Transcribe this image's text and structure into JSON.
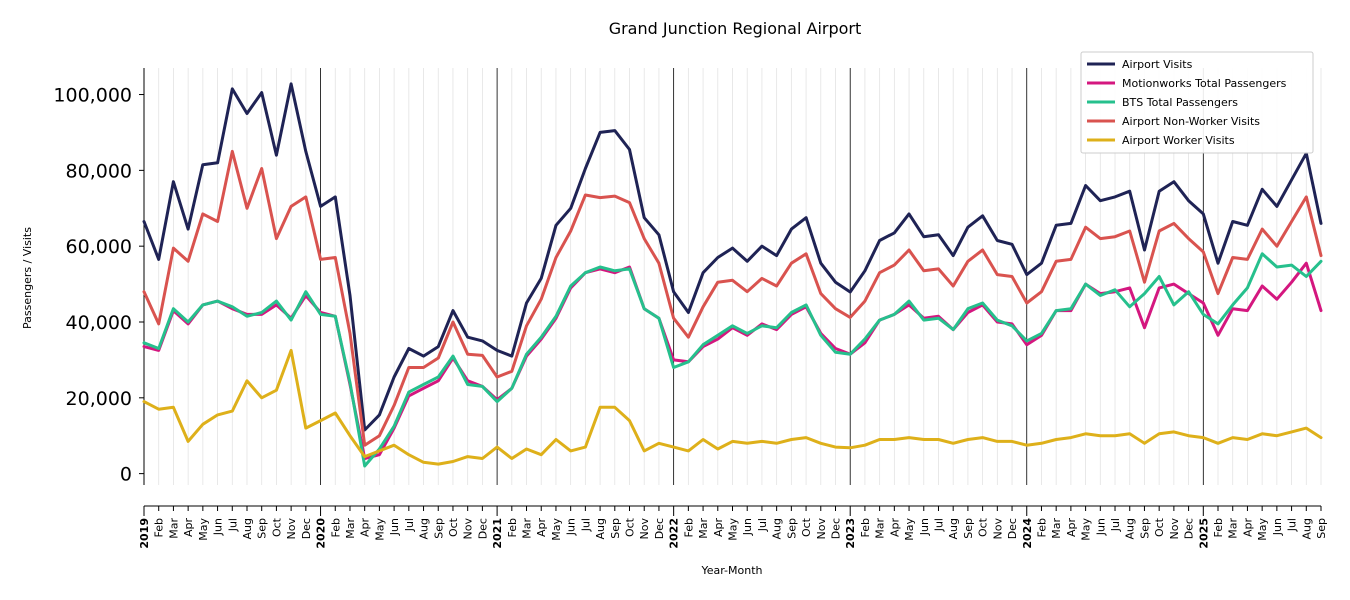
{
  "chart_data": {
    "type": "line",
    "title": "Grand Junction Regional Airport",
    "xlabel": "Year-Month",
    "ylabel": "Passengers / Visits",
    "ylim": [
      -3000,
      107000
    ],
    "yticks": [
      0,
      20000,
      40000,
      60000,
      80000,
      100000
    ],
    "ytick_labels": [
      "0",
      "20,000",
      "40,000",
      "60,000",
      "80,000",
      "100,000"
    ],
    "grid": "vertical minor lines per month, major black lines per year",
    "legend_position": "top-right",
    "x": [
      "2019",
      "Feb",
      "Mar",
      "Apr",
      "May",
      "Jun",
      "Jul",
      "Aug",
      "Sep",
      "Oct",
      "Nov",
      "Dec",
      "2020",
      "Feb",
      "Mar",
      "Apr",
      "May",
      "Jun",
      "Jul",
      "Aug",
      "Sep",
      "Oct",
      "Nov",
      "Dec",
      "2021",
      "Feb",
      "Mar",
      "Apr",
      "May",
      "Jun",
      "Jul",
      "Aug",
      "Sep",
      "Oct",
      "Nov",
      "Dec",
      "2022",
      "Feb",
      "Mar",
      "Apr",
      "May",
      "Jun",
      "Jul",
      "Aug",
      "Sep",
      "Oct",
      "Nov",
      "Dec",
      "2023",
      "Feb",
      "Mar",
      "Apr",
      "May",
      "Jun",
      "Jul",
      "Aug",
      "Sep",
      "Oct",
      "Nov",
      "Dec",
      "2024",
      "Feb",
      "Mar",
      "Apr",
      "May",
      "Jun",
      "Jul",
      "Aug",
      "Sep",
      "Oct",
      "Nov",
      "Dec",
      "2025",
      "Feb",
      "Mar",
      "Apr",
      "May",
      "Jun",
      "Jul",
      "Aug",
      "Sep"
    ],
    "series": [
      {
        "name": "Airport Visits",
        "color": "#1f2355",
        "values": [
          66500,
          56500,
          77000,
          64500,
          81500,
          82000,
          101500,
          95000,
          100500,
          84000,
          102800,
          85000,
          70500,
          73000,
          47000,
          11500,
          15500,
          25500,
          33000,
          31000,
          33500,
          43000,
          36000,
          35000,
          32500,
          31000,
          45000,
          51500,
          65500,
          70000,
          80500,
          90000,
          90500,
          85500,
          67500,
          63000,
          48000,
          42500,
          53000,
          57000,
          59500,
          56000,
          60000,
          57500,
          64500,
          67500,
          55500,
          50500,
          47900,
          53500,
          61500,
          63500,
          68500,
          62500,
          63000,
          57500,
          65000,
          68000,
          61500,
          60500,
          52500,
          55500,
          65500,
          66000,
          76000,
          72000,
          73000,
          74500,
          59000,
          74500,
          77000,
          72000,
          68500,
          55500,
          66500,
          65500,
          75000,
          70500,
          77500,
          84500,
          66000
        ]
      },
      {
        "name": "Motionworks Total Passengers",
        "color": "#d4177f",
        "values": [
          33500,
          32500,
          43000,
          39500,
          44500,
          45500,
          43500,
          42000,
          42000,
          44500,
          41000,
          47000,
          42500,
          41500,
          23500,
          4000,
          5000,
          12000,
          20500,
          22500,
          24500,
          30500,
          24500,
          23000,
          19500,
          22500,
          31000,
          35500,
          41000,
          49000,
          53000,
          54000,
          53000,
          54500,
          43500,
          41000,
          30000,
          29500,
          33500,
          35500,
          38500,
          36500,
          39500,
          38000,
          42000,
          44000,
          37000,
          33000,
          31500,
          34500,
          40500,
          42000,
          44500,
          41000,
          41500,
          38000,
          42500,
          44500,
          40000,
          39500,
          34000,
          36500,
          43000,
          43000,
          50000,
          47500,
          48000,
          49000,
          38500,
          49000,
          50000,
          47500,
          45000,
          36500,
          43500,
          43000,
          49500,
          46000,
          50500,
          55500,
          43000
        ]
      },
      {
        "name": "BTS Total Passengers",
        "color": "#26c08d",
        "values": [
          34500,
          33000,
          43500,
          40000,
          44500,
          45500,
          44000,
          41500,
          42500,
          45500,
          40500,
          48000,
          42000,
          41500,
          24000,
          2000,
          6500,
          12500,
          21500,
          23500,
          25500,
          31000,
          23500,
          23000,
          19000,
          22500,
          31500,
          36000,
          41500,
          49500,
          53000,
          54500,
          53500,
          54000,
          43500,
          41000,
          28000,
          29500,
          34000,
          36500,
          39000,
          37000,
          39000,
          38500,
          42500,
          44500,
          36500,
          32000,
          31500,
          35500,
          40500,
          42000,
          45500,
          40500,
          41000,
          38000,
          43500,
          45000,
          40500,
          39000,
          35000,
          37000,
          43000,
          43500,
          50000,
          47000,
          48500,
          44000,
          47500,
          52000,
          44500,
          48000,
          42000,
          39500,
          44500,
          49000,
          58000,
          54500,
          55000,
          52000,
          56000
        ]
      },
      {
        "name": "Airport Non-Worker Visits",
        "color": "#d9534f",
        "values": [
          48000,
          39500,
          59500,
          56000,
          68500,
          66500,
          85000,
          70000,
          80500,
          62000,
          70500,
          73000,
          56500,
          57000,
          37000,
          7500,
          10000,
          18000,
          28000,
          28000,
          30500,
          40000,
          31500,
          31200,
          25500,
          27000,
          39000,
          46000,
          57000,
          64000,
          73500,
          72800,
          73200,
          71500,
          62000,
          55500,
          41000,
          36000,
          44000,
          50500,
          51000,
          48000,
          51500,
          49500,
          55500,
          58000,
          47500,
          43500,
          41200,
          45500,
          53000,
          55000,
          59000,
          53500,
          54000,
          49500,
          56000,
          59000,
          52500,
          52000,
          45000,
          48000,
          56000,
          56500,
          65000,
          62000,
          62500,
          64000,
          50500,
          64000,
          66000,
          62000,
          58500,
          47500,
          57000,
          56500,
          64500,
          60000,
          66500,
          73000,
          57500
        ]
      },
      {
        "name": "Airport Worker Visits",
        "color": "#deb01a",
        "values": [
          19000,
          17000,
          17500,
          8500,
          13000,
          15500,
          16500,
          24500,
          20000,
          22000,
          32500,
          12000,
          14000,
          16000,
          10000,
          4500,
          6000,
          7500,
          5000,
          3000,
          2500,
          3200,
          4500,
          4000,
          7000,
          4000,
          6500,
          5000,
          9000,
          6000,
          7000,
          17500,
          17500,
          14000,
          6000,
          8000,
          7000,
          6000,
          9000,
          6500,
          8500,
          8000,
          8500,
          8000,
          9000,
          9500,
          8000,
          7000,
          6800,
          7500,
          9000,
          9000,
          9500,
          9000,
          9000,
          8000,
          9000,
          9500,
          8500,
          8500,
          7500,
          8000,
          9000,
          9500,
          10500,
          10000,
          10000,
          10500,
          8000,
          10500,
          11000,
          10000,
          9500,
          8000,
          9500,
          9000,
          10500,
          10000,
          11000,
          12000,
          9500
        ]
      }
    ]
  }
}
